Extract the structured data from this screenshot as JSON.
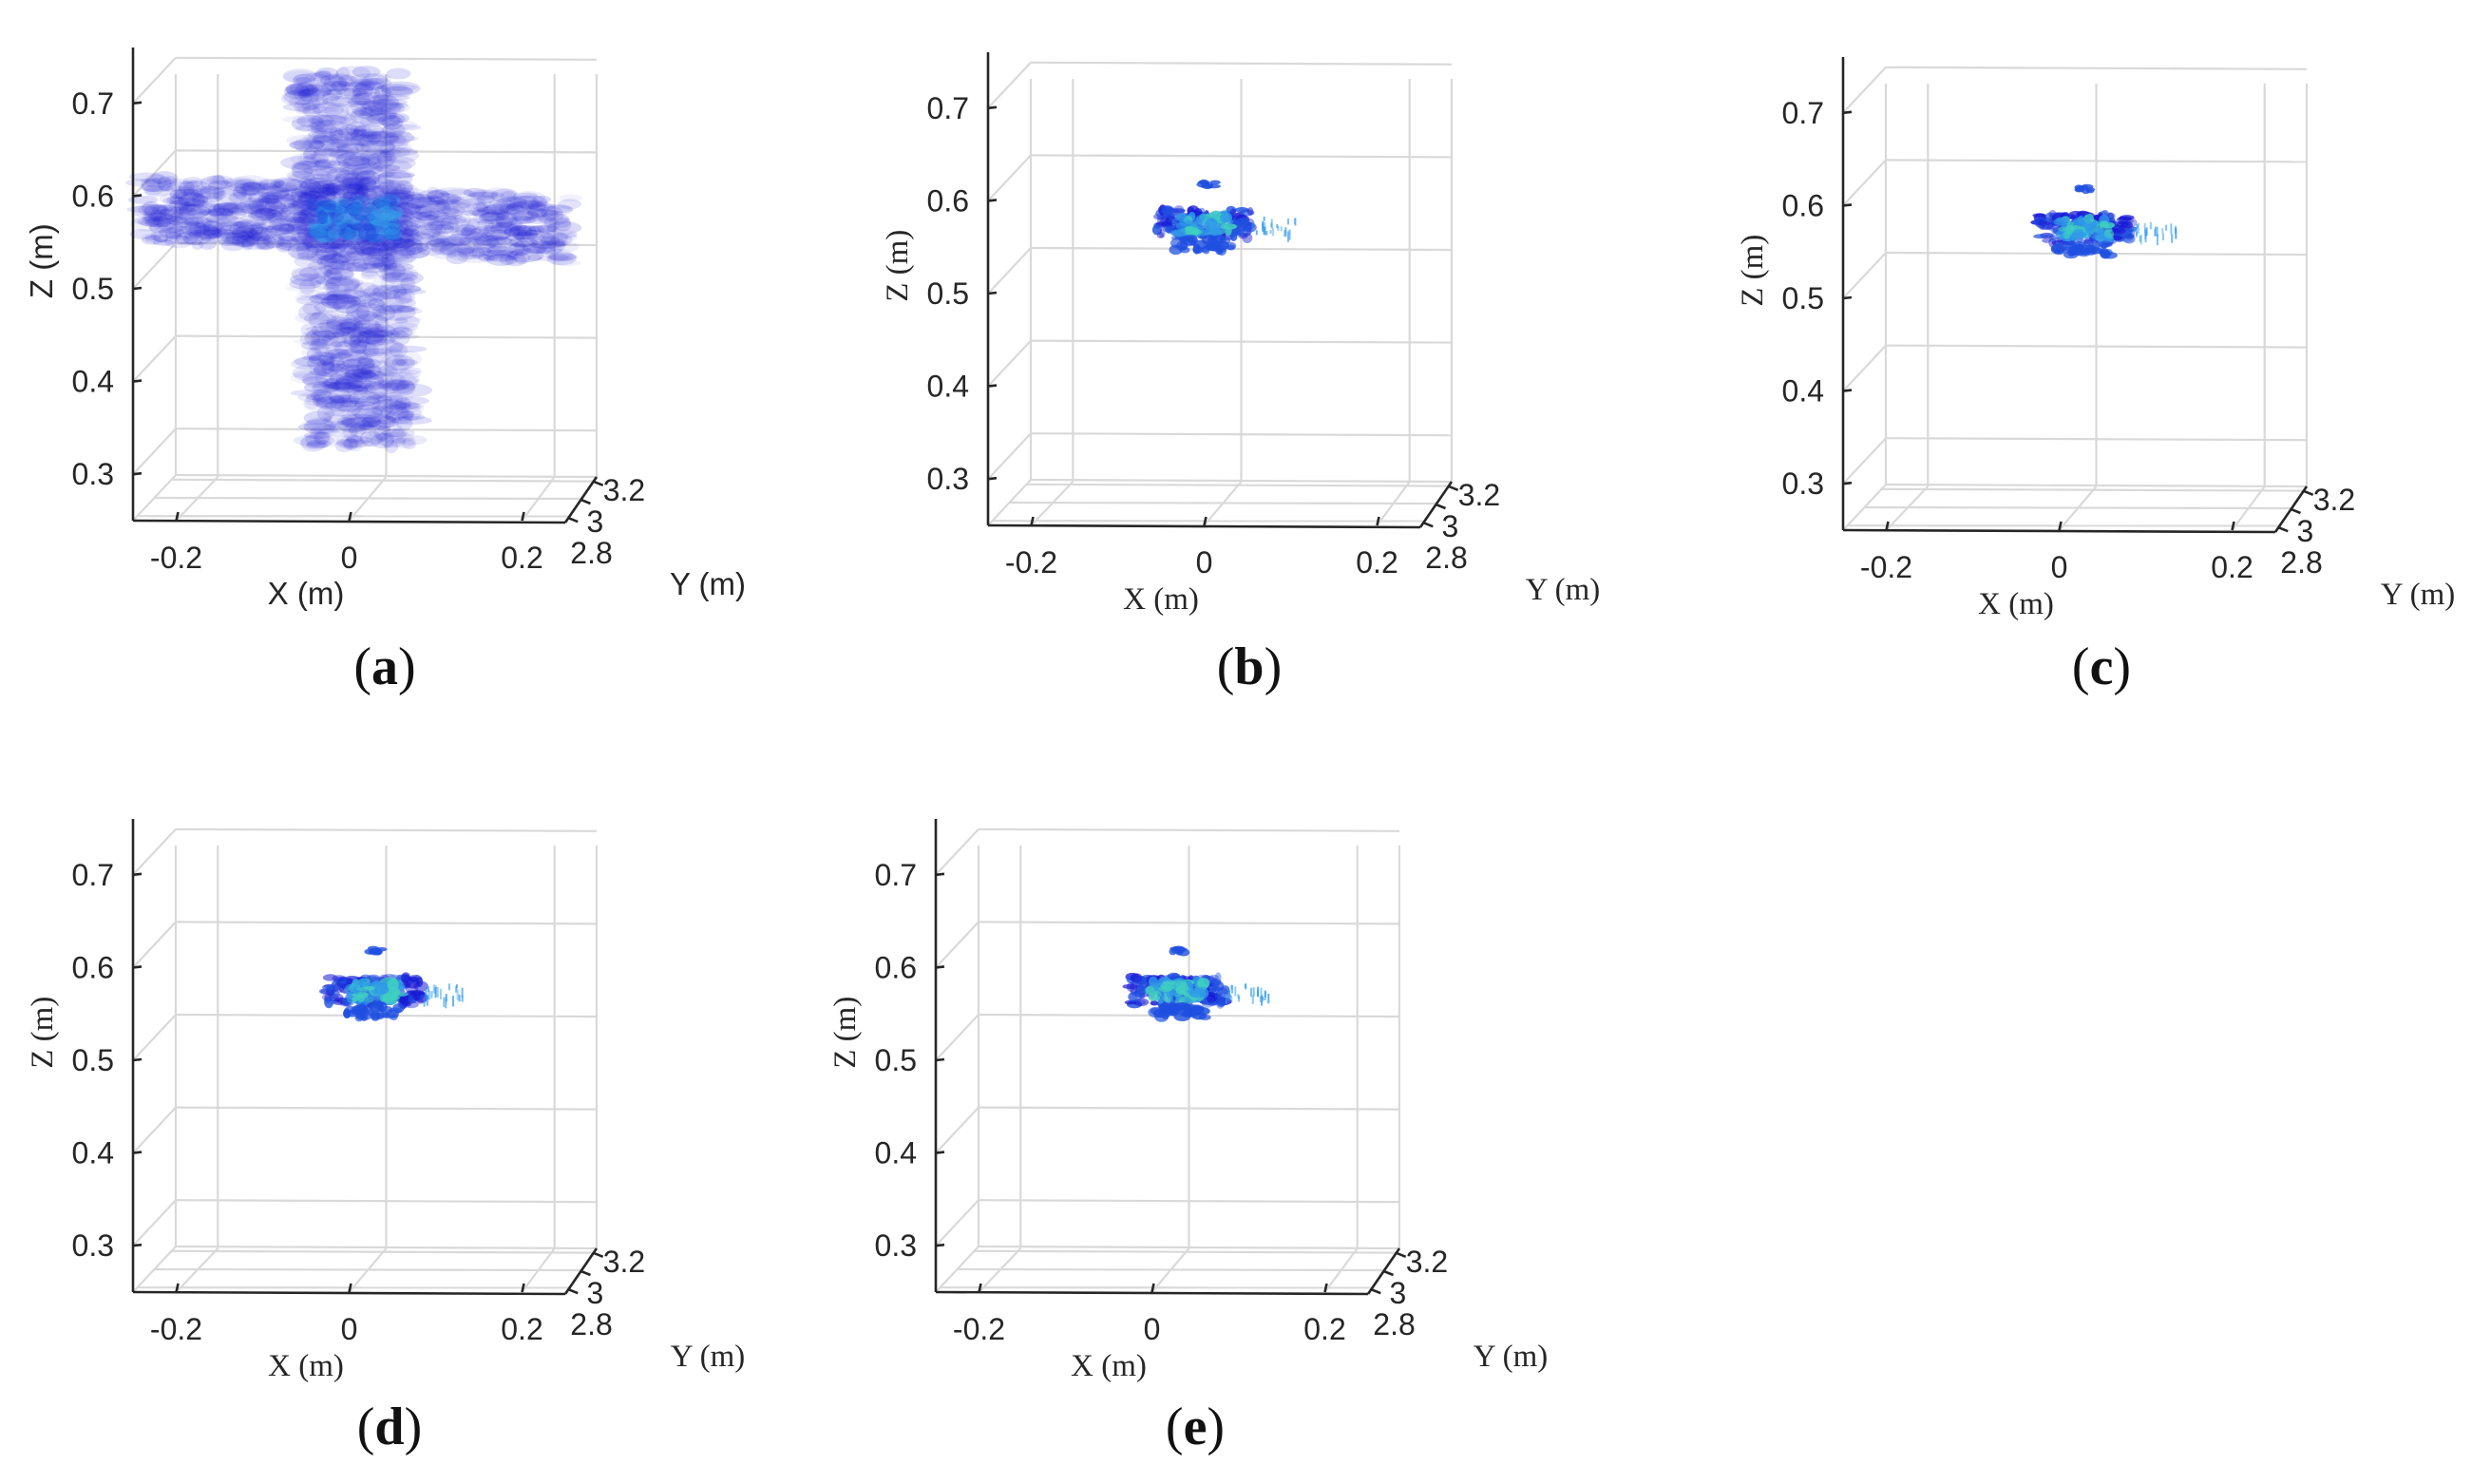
{
  "chart_data": [
    {
      "type": "scatter",
      "caption_letter": "a",
      "xlabel": "X (m)",
      "ylabel": "Y (m)",
      "zlabel": "Z (m)",
      "x_ticks": [
        "-0.2",
        "0",
        "0.2"
      ],
      "y_ticks": [
        "2.8",
        "3",
        "3.2"
      ],
      "z_ticks": [
        "0.3",
        "0.4",
        "0.5",
        "0.6",
        "0.7"
      ],
      "xlim": [
        -0.25,
        0.25
      ],
      "ylim": [
        2.75,
        3.25
      ],
      "zlim": [
        0.25,
        0.75
      ],
      "grid": true,
      "label_font": "sans",
      "image_style": "diffuse",
      "blob_center": {
        "x": 0.0,
        "z": 0.58
      },
      "colors": [
        "#1a1ad6",
        "#1f4fe0",
        "#2f9ae8",
        "#3fd0c0"
      ]
    },
    {
      "type": "scatter",
      "caption_letter": "b",
      "xlabel": "X (m)",
      "ylabel": "Y (m)",
      "zlabel": "Z (m)",
      "x_ticks": [
        "-0.2",
        "0",
        "0.2"
      ],
      "y_ticks": [
        "2.8",
        "3",
        "3.2"
      ],
      "z_ticks": [
        "0.3",
        "0.4",
        "0.5",
        "0.6",
        "0.7"
      ],
      "xlim": [
        -0.25,
        0.25
      ],
      "ylim": [
        2.75,
        3.25
      ],
      "zlim": [
        0.25,
        0.75
      ],
      "grid": true,
      "label_font": "serif",
      "image_style": "compact",
      "blob_center": {
        "x": 0.0,
        "z": 0.58
      },
      "colors": [
        "#1a1ad6",
        "#1f4fe0",
        "#2f9ae8",
        "#3fd0c0"
      ]
    },
    {
      "type": "scatter",
      "caption_letter": "c",
      "xlabel": "X (m)",
      "ylabel": "Y (m)",
      "zlabel": "Z (m)",
      "x_ticks": [
        "-0.2",
        "0",
        "0.2"
      ],
      "y_ticks": [
        "2.8",
        "3",
        "3.2"
      ],
      "z_ticks": [
        "0.3",
        "0.4",
        "0.5",
        "0.6",
        "0.7"
      ],
      "xlim": [
        -0.25,
        0.25
      ],
      "ylim": [
        2.75,
        3.25
      ],
      "zlim": [
        0.25,
        0.75
      ],
      "grid": true,
      "label_font": "serif",
      "image_style": "compact",
      "blob_center": {
        "x": 0.03,
        "z": 0.58
      },
      "colors": [
        "#1a1ad6",
        "#1f4fe0",
        "#2f9ae8",
        "#3fd0c0"
      ]
    },
    {
      "type": "scatter",
      "caption_letter": "d",
      "xlabel": "X (m)",
      "ylabel": "Y (m)",
      "zlabel": "Z (m)",
      "x_ticks": [
        "-0.2",
        "0",
        "0.2"
      ],
      "y_ticks": [
        "2.8",
        "3",
        "3.2"
      ],
      "z_ticks": [
        "0.3",
        "0.4",
        "0.5",
        "0.6",
        "0.7"
      ],
      "xlim": [
        -0.25,
        0.25
      ],
      "ylim": [
        2.75,
        3.25
      ],
      "zlim": [
        0.25,
        0.75
      ],
      "grid": true,
      "label_font": "serif",
      "image_style": "compact",
      "blob_center": {
        "x": 0.03,
        "z": 0.58
      },
      "colors": [
        "#1a1ad6",
        "#1f4fe0",
        "#2f9ae8",
        "#3fd0c0"
      ]
    },
    {
      "type": "scatter",
      "caption_letter": "e",
      "xlabel": "X (m)",
      "ylabel": "Y (m)",
      "zlabel": "Z (m)",
      "x_ticks": [
        "-0.2",
        "0",
        "0.2"
      ],
      "y_ticks": [
        "2.8",
        "3",
        "3.2"
      ],
      "z_ticks": [
        "0.3",
        "0.4",
        "0.5",
        "0.6",
        "0.7"
      ],
      "xlim": [
        -0.25,
        0.25
      ],
      "ylim": [
        2.75,
        3.25
      ],
      "zlim": [
        0.25,
        0.75
      ],
      "grid": true,
      "label_font": "serif",
      "image_style": "compact",
      "blob_center": {
        "x": 0.03,
        "z": 0.58
      },
      "colors": [
        "#1a1ad6",
        "#1f4fe0",
        "#2f9ae8",
        "#3fd0c0"
      ]
    }
  ]
}
